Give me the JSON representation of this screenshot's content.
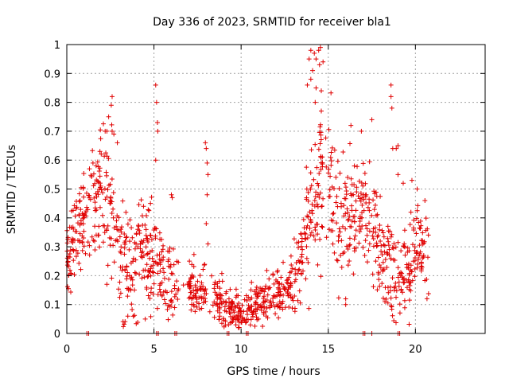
{
  "chart_data": {
    "type": "scatter",
    "title": "Day 336 of 2023, SRMTID for receiver bla1",
    "xlabel": "GPS time / hours",
    "ylabel": "SRMTID / TECUs",
    "xlim": [
      0,
      24
    ],
    "ylim": [
      0,
      1
    ],
    "x_ticks": [
      0,
      5,
      10,
      15,
      20
    ],
    "y_ticks": [
      0,
      0.1,
      0.2,
      0.3,
      0.4,
      0.5,
      0.6,
      0.7,
      0.8,
      0.9,
      1
    ],
    "x_tick_labels": [
      "0",
      "5",
      "10",
      "15",
      "20"
    ],
    "y_tick_labels": [
      "0",
      "0.1",
      "0.2",
      "0.3",
      "0.4",
      "0.5",
      "0.6",
      "0.7",
      "0.8",
      "0.9",
      "1"
    ],
    "grid": true,
    "marker": "+",
    "series_color": "#e00000",
    "trend": {
      "x": [
        0,
        0.5,
        1,
        1.5,
        2,
        2.5,
        3,
        3.5,
        4,
        4.5,
        5,
        5.5,
        6,
        6.5,
        7,
        7.5,
        8,
        8.5,
        9,
        9.5,
        10,
        10.5,
        11,
        11.5,
        12,
        12.5,
        13,
        13.5,
        14,
        14.5,
        15,
        15.5,
        16,
        16.5,
        17,
        17.5,
        18,
        18.5,
        19,
        19.5,
        20,
        20.5,
        20.8
      ],
      "y": [
        0.28,
        0.33,
        0.42,
        0.46,
        0.48,
        0.45,
        0.3,
        0.22,
        0.24,
        0.3,
        0.26,
        0.22,
        0.16,
        0.15,
        0.15,
        0.14,
        0.14,
        0.13,
        0.1,
        0.08,
        0.07,
        0.09,
        0.11,
        0.12,
        0.13,
        0.15,
        0.18,
        0.25,
        0.42,
        0.52,
        0.48,
        0.42,
        0.4,
        0.42,
        0.42,
        0.38,
        0.3,
        0.22,
        0.18,
        0.22,
        0.28,
        0.3,
        0.26
      ]
    },
    "spread": {
      "x": [
        0,
        2,
        3,
        4,
        5,
        6,
        7,
        9,
        10,
        12,
        13,
        14,
        15,
        16,
        17,
        18,
        19,
        20,
        20.8
      ],
      "y": [
        0.06,
        0.12,
        0.11,
        0.09,
        0.08,
        0.06,
        0.05,
        0.04,
        0.03,
        0.04,
        0.05,
        0.14,
        0.14,
        0.1,
        0.1,
        0.09,
        0.08,
        0.08,
        0.07
      ]
    },
    "gaps": [
      [
        6.4,
        7.0
      ],
      [
        8.1,
        8.4
      ],
      [
        14.75,
        15.0
      ]
    ],
    "n_points": 1300,
    "outliers": [
      [
        1.3,
        0.57
      ],
      [
        1.5,
        0.59
      ],
      [
        1.9,
        0.63
      ],
      [
        2.2,
        0.7
      ],
      [
        2.4,
        0.75
      ],
      [
        2.55,
        0.79
      ],
      [
        2.6,
        0.82
      ],
      [
        2.7,
        0.69
      ],
      [
        2.9,
        0.66
      ],
      [
        5.1,
        0.86
      ],
      [
        5.15,
        0.8
      ],
      [
        5.2,
        0.73
      ],
      [
        5.22,
        0.7
      ],
      [
        5.1,
        0.6
      ],
      [
        2.3,
        0.7
      ],
      [
        2.6,
        0.7
      ],
      [
        3.6,
        0.2
      ],
      [
        7.95,
        0.66
      ],
      [
        8.0,
        0.64
      ],
      [
        8.05,
        0.59
      ],
      [
        8.1,
        0.55
      ],
      [
        8.05,
        0.48
      ],
      [
        8.0,
        0.38
      ],
      [
        8.1,
        0.31
      ],
      [
        4.4,
        0.44
      ],
      [
        4.8,
        0.45
      ],
      [
        6.0,
        0.48
      ],
      [
        6.05,
        0.47
      ],
      [
        13.9,
        0.95
      ],
      [
        14.0,
        0.98
      ],
      [
        14.2,
        0.97
      ],
      [
        14.45,
        0.98
      ],
      [
        14.55,
        0.99
      ],
      [
        14.3,
        0.95
      ],
      [
        14.1,
        0.91
      ],
      [
        14.7,
        0.94
      ],
      [
        14.0,
        0.88
      ],
      [
        14.5,
        0.93
      ],
      [
        13.8,
        0.86
      ],
      [
        14.6,
        0.84
      ],
      [
        14.3,
        0.85
      ],
      [
        14.25,
        0.8
      ],
      [
        14.6,
        0.77
      ],
      [
        16.3,
        0.72
      ],
      [
        16.9,
        0.7
      ],
      [
        17.5,
        0.74
      ],
      [
        18.6,
        0.86
      ],
      [
        18.6,
        0.82
      ],
      [
        18.65,
        0.78
      ],
      [
        18.7,
        0.64
      ],
      [
        18.9,
        0.64
      ],
      [
        19.0,
        0.65
      ],
      [
        19.0,
        0.55
      ],
      [
        19.3,
        0.52
      ],
      [
        19.8,
        0.53
      ],
      [
        20.1,
        0.5
      ],
      [
        9.7,
        0.03
      ],
      [
        9.8,
        0.05
      ],
      [
        10.0,
        0.04
      ],
      [
        9.5,
        0.05
      ],
      [
        10.3,
        0.04
      ],
      [
        11.0,
        0.05
      ],
      [
        4.5,
        0.05
      ],
      [
        3.5,
        0.06
      ],
      [
        16.0,
        0.1
      ],
      [
        16.0,
        0.12
      ]
    ],
    "zero_markers": [
      1.15,
      1.25,
      5.15,
      5.25,
      6.2,
      6.3,
      9.2,
      9.3,
      10.3,
      10.4,
      17.0,
      17.1,
      17.5,
      19.0,
      19.1
    ]
  }
}
